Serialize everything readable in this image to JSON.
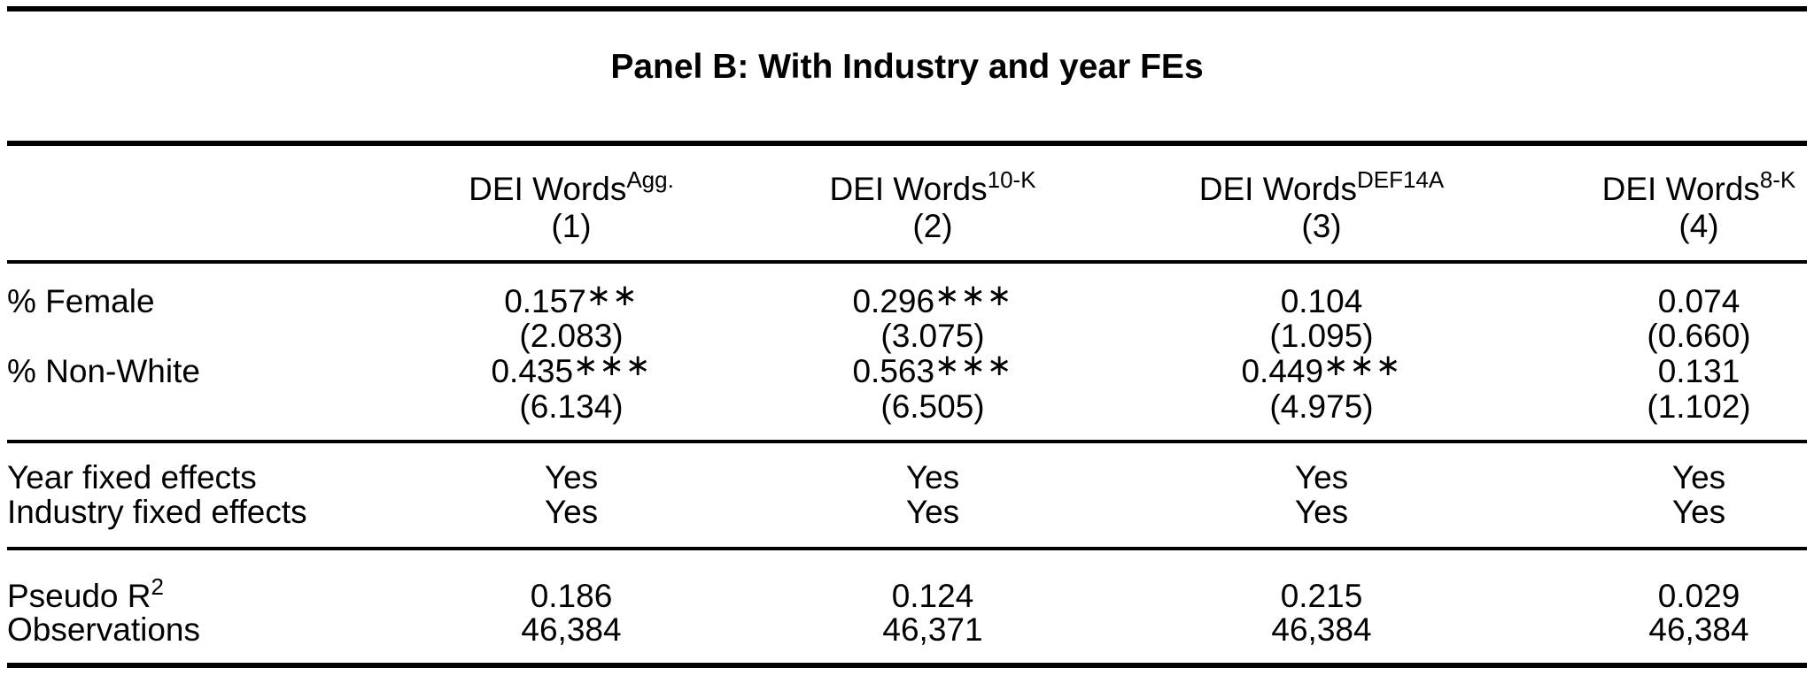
{
  "title": "Panel B: With Industry and year FEs",
  "header": {
    "columns": [
      {
        "base": "DEI Words",
        "sup": "Agg.",
        "num": "(1)"
      },
      {
        "base": "DEI Words",
        "sup": "10-K",
        "num": "(2)"
      },
      {
        "base": "DEI Words",
        "sup": "DEF14A",
        "num": "(3)"
      },
      {
        "base": "DEI Words",
        "sup": "8-K",
        "num": "(4)"
      }
    ]
  },
  "rows": {
    "female": {
      "label": "% Female",
      "coefs": [
        "0.157",
        "0.296",
        "0.104",
        "0.074"
      ],
      "stars": [
        "∗∗",
        "∗∗∗",
        "",
        ""
      ],
      "tstats": [
        "(2.083)",
        "(3.075)",
        "(1.095)",
        "(0.660)"
      ]
    },
    "nonwhite": {
      "label": "% Non-White",
      "coefs": [
        "0.435",
        "0.563",
        "0.449",
        "0.131"
      ],
      "stars": [
        "∗∗∗",
        "∗∗∗",
        "∗∗∗",
        ""
      ],
      "tstats": [
        "(6.134)",
        "(6.505)",
        "(4.975)",
        "(1.102)"
      ]
    },
    "year_fe": {
      "label": "Year fixed effects",
      "values": [
        "Yes",
        "Yes",
        "Yes",
        "Yes"
      ]
    },
    "industry_fe": {
      "label": "Industry fixed effects",
      "values": [
        "Yes",
        "Yes",
        "Yes",
        "Yes"
      ]
    },
    "pseudo_r2": {
      "label": "Pseudo R",
      "label_sup": "2",
      "values": [
        "0.186",
        "0.124",
        "0.215",
        "0.029"
      ]
    },
    "observations": {
      "label": "Observations",
      "values": [
        "46,384",
        "46,371",
        "46,384",
        "46,384"
      ]
    }
  }
}
